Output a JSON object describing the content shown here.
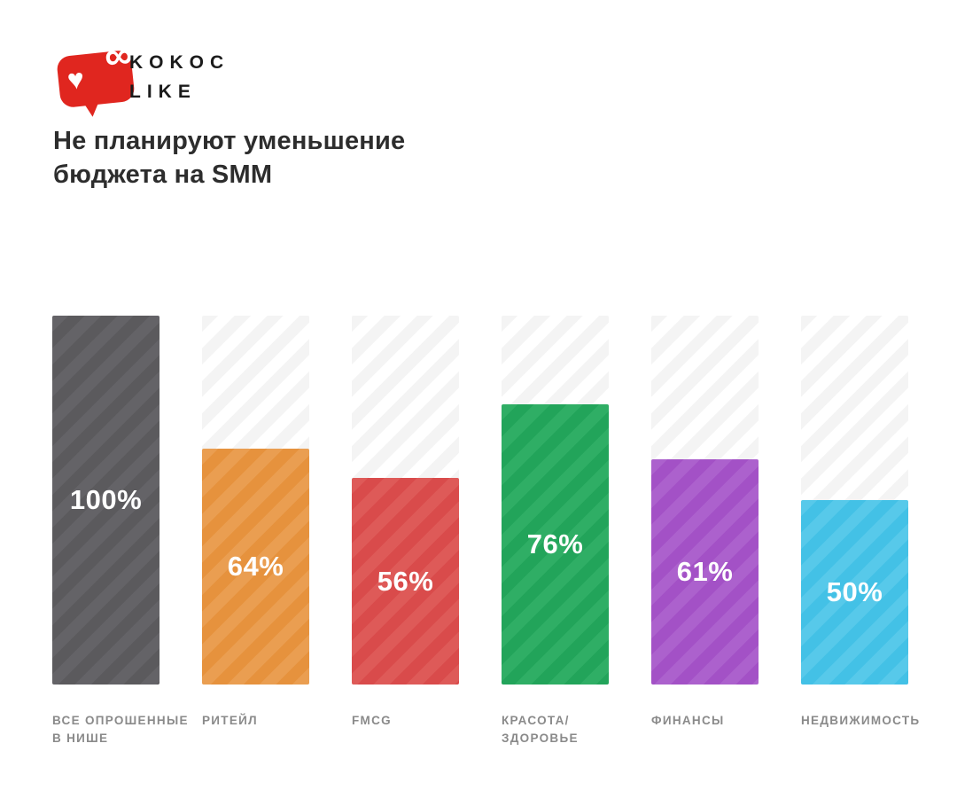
{
  "logo": {
    "brand_line1": "KOKOC",
    "brand_line2": "LIKE",
    "heart_glyph": "♥",
    "infinity_glyph": "∞",
    "bubble_color": "#e0261f",
    "text_color": "#1b1b1b"
  },
  "title": {
    "line1": "Не планируют уменьшение",
    "line2": "бюджета на SMM"
  },
  "chart_data": {
    "type": "bar",
    "title": "Не планируют уменьшение бюджета на SMM",
    "categories": [
      "ВСЕ ОПРОШЕННЫЕ В НИШЕ",
      "РИТЕЙЛ",
      "FMCG",
      "КРАСОТА/ЗДОРОВЬЕ",
      "ФИНАНСЫ",
      "НЕДВИЖИМОСТЬ"
    ],
    "category_label_lines": [
      [
        "ВСЕ ОПРОШЕННЫЕ",
        "В НИШЕ"
      ],
      [
        "РИТЕЙЛ"
      ],
      [
        "FMCG"
      ],
      [
        "КРАСОТА/",
        "ЗДОРОВЬЕ"
      ],
      [
        "ФИНАНСЫ"
      ],
      [
        "НЕДВИЖИМОСТЬ"
      ]
    ],
    "values": [
      100,
      64,
      56,
      76,
      61,
      50
    ],
    "value_labels": [
      "100%",
      "64%",
      "56%",
      "76%",
      "61%",
      "50%"
    ],
    "bar_colors": [
      "#5b5a5d",
      "#e6923d",
      "#d94b4b",
      "#22a45a",
      "#a351c6",
      "#43c1e6"
    ],
    "bar_stripe_colors": [
      "#646367",
      "#ea9e51",
      "#de5a58",
      "#2fae65",
      "#ac61cd",
      "#57c9ea"
    ],
    "track_stripe_colors": [
      "#f4f4f4",
      "#ffffff"
    ],
    "value_label_color": "#ffffff",
    "category_label_color": "#8a8a8a",
    "ylim": [
      0,
      100
    ],
    "grid": false,
    "legend": false,
    "orientation": "vertical"
  }
}
